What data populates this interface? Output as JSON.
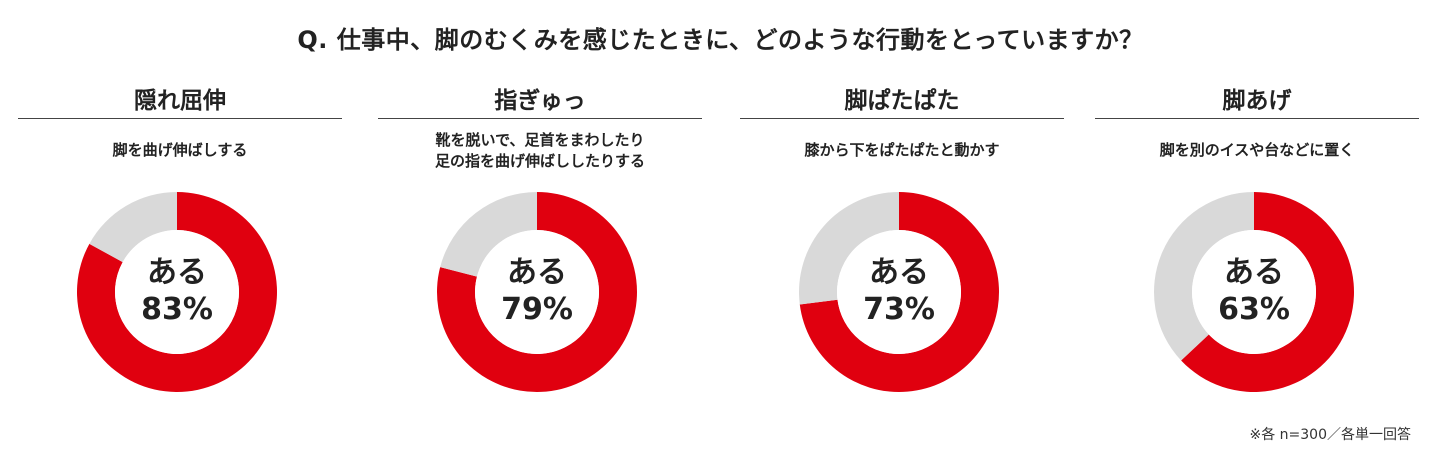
{
  "question": "Q. 仕事中、脚のむくみを感じたときに、どのような行動をとっていますか？",
  "note": "※各 n=300／各単一回答",
  "colors": {
    "primary": "#e0000f",
    "remainder": "#d9d9d9",
    "hole": "#ffffff"
  },
  "chart_data": [
    {
      "type": "pie",
      "title": "隠れ屈伸",
      "description": [
        "脚を曲げ伸ばしする"
      ],
      "center_label": "ある",
      "center_value_text": "83%",
      "values": [
        83,
        17
      ],
      "labels": [
        "ある",
        ""
      ]
    },
    {
      "type": "pie",
      "title": "指ぎゅっ",
      "description": [
        "靴を脱いで、足首をまわしたり",
        "足の指を曲げ伸ばししたりする"
      ],
      "center_label": "ある",
      "center_value_text": "79%",
      "values": [
        79,
        21
      ],
      "labels": [
        "ある",
        ""
      ]
    },
    {
      "type": "pie",
      "title": "脚ぱたぱた",
      "description": [
        "膝から下をぱたぱたと動かす"
      ],
      "center_label": "ある",
      "center_value_text": "73%",
      "values": [
        73,
        27
      ],
      "labels": [
        "ある",
        ""
      ]
    },
    {
      "type": "pie",
      "title": "脚あげ",
      "description": [
        "脚を別のイスや台などに置く"
      ],
      "center_label": "ある",
      "center_value_text": "63%",
      "values": [
        63,
        37
      ],
      "labels": [
        "ある",
        ""
      ]
    }
  ]
}
